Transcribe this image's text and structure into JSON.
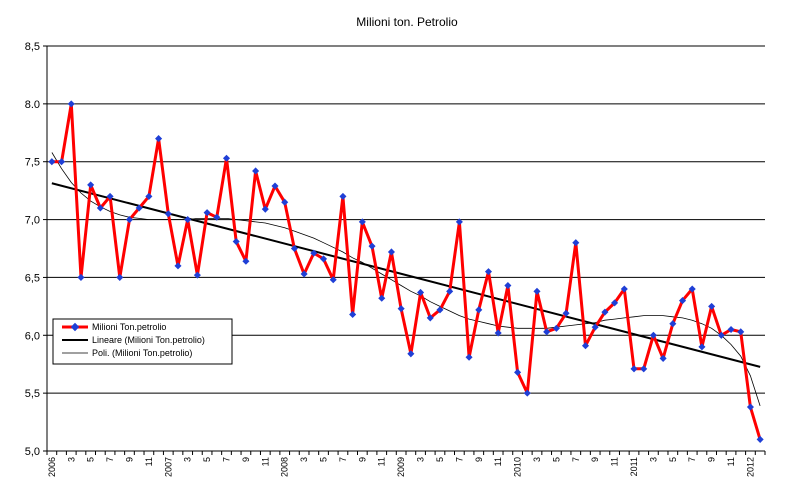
{
  "chart_data": {
    "type": "line",
    "title": "Milioni ton. Petrolio",
    "xlabel": "",
    "ylabel": "",
    "ylim": [
      5.0,
      8.5
    ],
    "yticks": [
      "5,0",
      "5,5",
      "6,0",
      "6,5",
      "7,0",
      "7,5",
      "8.0",
      "8,5"
    ],
    "yticks_values": [
      5.0,
      5.5,
      6.0,
      6.5,
      7.0,
      7.5,
      8.0,
      8.5
    ],
    "grid": true,
    "legend_position": "left",
    "x_tick_labels": [
      "2006",
      "3",
      "5",
      "7",
      "9",
      "11",
      "2007",
      "3",
      "5",
      "7",
      "9",
      "11",
      "2008",
      "3",
      "5",
      "7",
      "9",
      "11",
      "2009",
      "3",
      "5",
      "7",
      "9",
      "11",
      "2010",
      "3",
      "5",
      "7",
      "9",
      "11",
      "2011",
      "3",
      "5",
      "7",
      "9",
      "11",
      "2012"
    ],
    "series": [
      {
        "name": "Milioni Ton.petrolio",
        "color": "#ff0000",
        "marker_color": "#1f3fd6",
        "values": [
          7.5,
          7.5,
          8.0,
          6.5,
          7.3,
          7.1,
          7.2,
          6.5,
          7.0,
          7.1,
          7.2,
          7.7,
          7.05,
          6.6,
          7.0,
          6.52,
          7.06,
          7.02,
          7.53,
          6.81,
          6.64,
          7.42,
          7.09,
          7.29,
          7.15,
          6.75,
          6.53,
          6.71,
          6.66,
          6.48,
          7.2,
          6.18,
          6.98,
          6.77,
          6.32,
          6.72,
          6.23,
          5.84,
          6.37,
          6.15,
          6.22,
          6.38,
          6.98,
          5.81,
          6.22,
          6.55,
          6.02,
          6.43,
          5.68,
          5.5,
          6.38,
          6.03,
          6.06,
          6.19,
          6.8,
          5.91,
          6.07,
          6.2,
          6.28,
          6.4,
          5.71,
          5.71,
          6.0,
          5.8,
          6.1,
          6.3,
          6.4,
          5.9,
          6.25,
          6.0,
          6.05,
          6.03,
          5.38,
          5.1
        ]
      },
      {
        "name": "Lineare (Milioni Ton.petrolio)",
        "color": "#000000",
        "trend": "linear"
      },
      {
        "name": "Poli. (Milioni Ton.petrolio)",
        "color": "#000000",
        "trend": "polynomial",
        "values": [
          7.58,
          7.44,
          7.32,
          7.23,
          7.16,
          7.11,
          7.07,
          7.04,
          7.02,
          7.01,
          7.0,
          7.0,
          7.0,
          7.0,
          7.0,
          7.01,
          7.01,
          7.01,
          7.01,
          7.0,
          6.99,
          6.98,
          6.97,
          6.95,
          6.93,
          6.9,
          6.87,
          6.84,
          6.8,
          6.76,
          6.72,
          6.67,
          6.63,
          6.58,
          6.53,
          6.48,
          6.43,
          6.38,
          6.34,
          6.29,
          6.25,
          6.21,
          6.17,
          6.14,
          6.12,
          6.1,
          6.08,
          6.07,
          6.06,
          6.06,
          6.06,
          6.06,
          6.07,
          6.08,
          6.09,
          6.1,
          6.11,
          6.13,
          6.14,
          6.15,
          6.16,
          6.17,
          6.17,
          6.17,
          6.16,
          6.15,
          6.13,
          6.1,
          6.06,
          6.0,
          5.92,
          5.82,
          5.65,
          5.39
        ]
      }
    ]
  }
}
